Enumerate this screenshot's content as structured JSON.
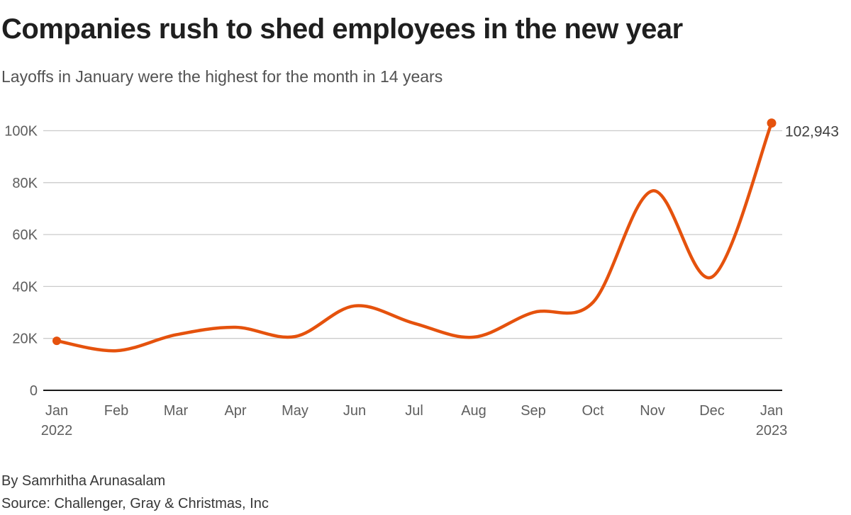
{
  "header": {
    "title": "Companies rush to shed employees in the new year",
    "subtitle": "Layoffs in January were the highest for the month in 14 years"
  },
  "chart_data": {
    "type": "line",
    "title": "Companies rush to shed employees in the new year",
    "subtitle": "Layoffs in January were the highest for the month in 14 years",
    "x_tick_labels": [
      {
        "month": "Jan",
        "year": "2022"
      },
      {
        "month": "Feb"
      },
      {
        "month": "Mar"
      },
      {
        "month": "Apr"
      },
      {
        "month": "May"
      },
      {
        "month": "Jun"
      },
      {
        "month": "Jul"
      },
      {
        "month": "Aug"
      },
      {
        "month": "Sep"
      },
      {
        "month": "Oct"
      },
      {
        "month": "Nov"
      },
      {
        "month": "Dec"
      },
      {
        "month": "Jan",
        "year": "2023"
      }
    ],
    "values": [
      19064,
      15245,
      21387,
      24286,
      20712,
      32517,
      25810,
      20485,
      29989,
      33843,
      76835,
      43651,
      102943
    ],
    "ylim": [
      0,
      100000
    ],
    "yticks": [
      {
        "value": 0,
        "label": "0"
      },
      {
        "value": 20000,
        "label": "20K"
      },
      {
        "value": 40000,
        "label": "40K"
      },
      {
        "value": 60000,
        "label": "60K"
      },
      {
        "value": 80000,
        "label": "80K"
      },
      {
        "value": 100000,
        "label": "100K"
      }
    ],
    "end_annotation": "102,943",
    "grid": "on",
    "legend": "none",
    "colors": {
      "line": "#E5520D",
      "marker": "#E5520D",
      "gridline": "#CBCBCB",
      "baseline": "#1a1a1a",
      "tick_label": "#5E5E5E",
      "annotation": "#404040"
    }
  },
  "footer": {
    "byline": "By Samrhitha Arunasalam",
    "source": "Source: Challenger, Gray & Christmas, Inc"
  }
}
